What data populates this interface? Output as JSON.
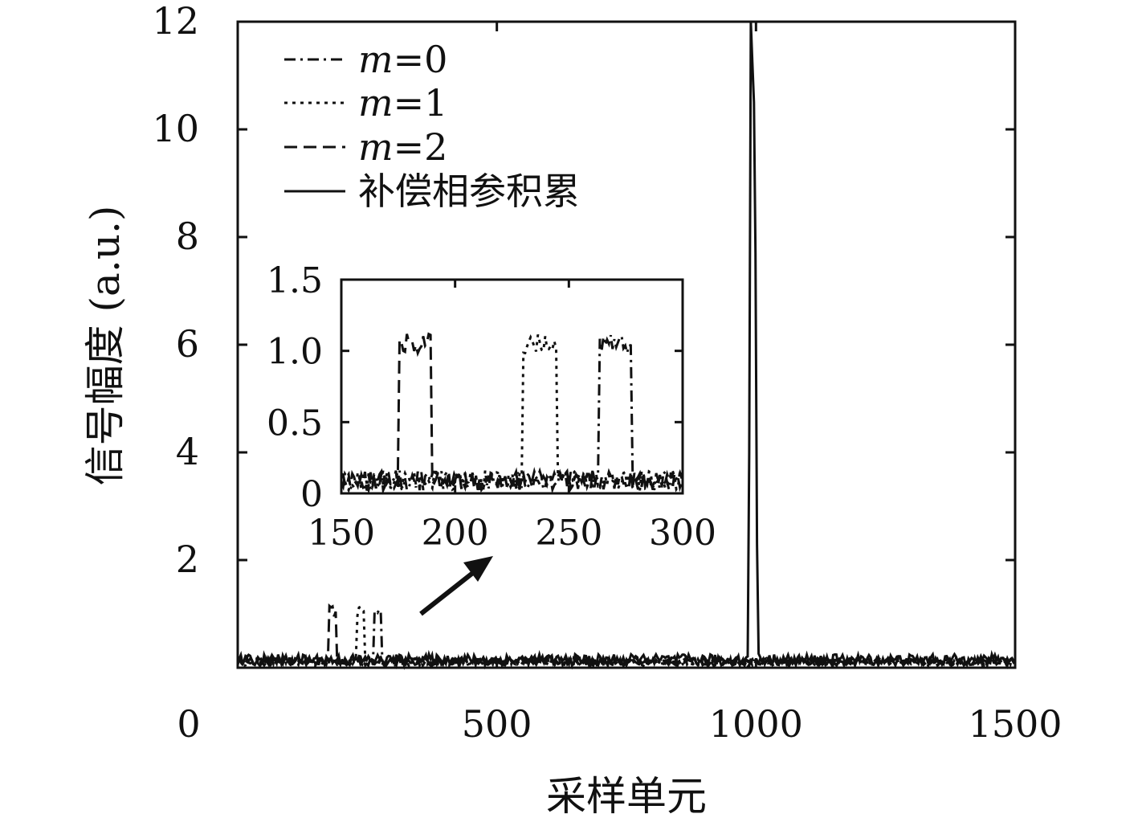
{
  "chart_data": [
    {
      "type": "line",
      "xlabel": "采样单元",
      "ylabel": "信号幅度 (a.u.)",
      "xlim": [
        0,
        1500
      ],
      "ylim": [
        0,
        12
      ],
      "xticks": [
        0,
        500,
        1000,
        1500
      ],
      "xtick_labels": [
        "0",
        "500",
        "1000",
        "1500"
      ],
      "yticks": [
        2,
        4,
        6,
        8,
        10,
        12
      ],
      "ytick_labels": [
        "2",
        "4",
        "6",
        "8",
        "10",
        "12"
      ],
      "grid": false,
      "legend_position": "top-left",
      "legend": [
        {
          "label_prefix": "m",
          "label_suffix": "=0",
          "style": "dash-dot"
        },
        {
          "label_prefix": "m",
          "label_suffix": "=1",
          "style": "dotted"
        },
        {
          "label_prefix": "m",
          "label_suffix": "=2",
          "style": "dashed"
        },
        {
          "label_prefix": "",
          "label_suffix": "补偿相参积累",
          "style": "solid"
        }
      ],
      "series": [
        {
          "name": "m=0",
          "style": "dash-dot",
          "noise_level": 0.08,
          "pulse": {
            "start": 263,
            "end": 278,
            "level": 1.05
          }
        },
        {
          "name": "m=1",
          "style": "dotted",
          "noise_level": 0.08,
          "pulse": {
            "start": 230,
            "end": 245,
            "level": 1.05
          }
        },
        {
          "name": "m=2",
          "style": "dashed",
          "noise_level": 0.08,
          "pulse": {
            "start": 175,
            "end": 190,
            "level": 1.05
          }
        },
        {
          "name": "补偿相参积累",
          "style": "solid",
          "noise_level": 0.12,
          "pulse": {
            "start": 990,
            "end": 1000,
            "level": 12.0
          }
        }
      ]
    },
    {
      "type": "line",
      "role": "inset",
      "xlim": [
        150,
        300
      ],
      "ylim": [
        0,
        1.5
      ],
      "xticks": [
        150,
        200,
        250,
        300
      ],
      "xtick_labels": [
        "150",
        "200",
        "250",
        "300"
      ],
      "yticks": [
        0,
        0.5,
        1.0,
        1.5
      ],
      "ytick_labels": [
        "0",
        "0.5",
        "1.0",
        "1.5"
      ],
      "series": [
        {
          "name": "m=0",
          "style": "dash-dot",
          "pulse": {
            "start": 263,
            "end": 278,
            "level": 1.05
          }
        },
        {
          "name": "m=1",
          "style": "dotted",
          "pulse": {
            "start": 230,
            "end": 245,
            "level": 1.05
          }
        },
        {
          "name": "m=2",
          "style": "dashed",
          "pulse": {
            "start": 175,
            "end": 190,
            "level": 1.05
          }
        }
      ]
    }
  ],
  "colors": {
    "line": "#111111",
    "background": "#ffffff"
  }
}
